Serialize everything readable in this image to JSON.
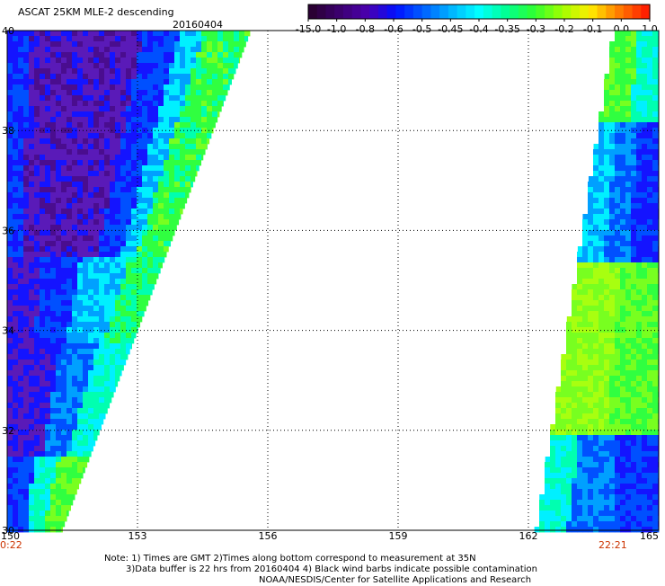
{
  "title": "ASCAT 25KM MLE-2 descending",
  "date": "20160404",
  "colorbar": {
    "tick_labels": [
      "-15.0",
      "-1.0",
      "-0.8",
      "-0.6",
      "-0.5",
      "-0.45",
      "-0.4",
      "-0.35",
      "-0.3",
      "-0.2",
      "-0.1",
      "0.0",
      "1.0"
    ],
    "colors": [
      "#2a0033",
      "#3c0070",
      "#4b00b0",
      "#0010ff",
      "#0060ff",
      "#00b4ff",
      "#00ffff",
      "#00ff90",
      "#30ff30",
      "#a0ff00",
      "#ffee00",
      "#ff8000",
      "#ff2000"
    ]
  },
  "map": {
    "lon_labels": [
      "150",
      "153",
      "156",
      "159",
      "162",
      "165"
    ],
    "lat_labels": [
      "40",
      "38",
      "36",
      "34",
      "32",
      "30"
    ],
    "lon_range": [
      150,
      165
    ],
    "lat_range": [
      30,
      40
    ],
    "time_left": "0:22",
    "time_right": "22:21"
  },
  "footer": {
    "line1": "Note: 1) Times are GMT 2)Times along bottom correspond to measurement at 35N",
    "line2": "3)Data buffer is 22 hrs from 20160404 4) Black wind barbs indicate possible contamination",
    "line3": "NOAA/NESDIS/Center for Satellite Applications and Research"
  }
}
